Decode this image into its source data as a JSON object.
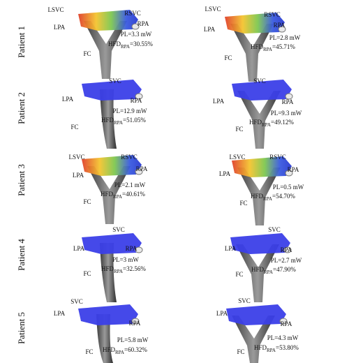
{
  "rows": [
    {
      "label": "Patient 1",
      "panels": [
        {
          "labels": [
            "LSVC",
            "RSVC",
            "LPA",
            "RPA",
            "FC"
          ],
          "pl": "PL=3.3 mW",
          "hfd": "HFD",
          "sub": "RPA",
          "val": "=30.55%"
        },
        {
          "labels": [
            "LSVC",
            "RSVC",
            "LPA",
            "RPA",
            "FC"
          ],
          "pl": "PL=2.8 mW",
          "hfd": "HFD",
          "sub": "RPA",
          "val": "=45.71%"
        }
      ]
    },
    {
      "label": "Patient 2",
      "panels": [
        {
          "labels": [
            "SVC",
            "LPA",
            "RPA",
            "FC"
          ],
          "pl": "PL=12.9 mW",
          "hfd": "HFD",
          "sub": "RPA",
          "val": "=51.05%"
        },
        {
          "labels": [
            "SVC",
            "LPA",
            "RPA",
            "FC"
          ],
          "pl": "PL=9.3 mW",
          "hfd": "HFD",
          "sub": "RPA",
          "val": "=49.12%"
        }
      ]
    },
    {
      "label": "Patient 3",
      "panels": [
        {
          "labels": [
            "LSVC",
            "RSVC",
            "LPA",
            "RPA",
            "FC"
          ],
          "pl": "PL=2.1 mW",
          "hfd": "HFD",
          "sub": "RPA",
          "val": "=40.61%"
        },
        {
          "labels": [
            "LSVC",
            "RSVC",
            "LPA",
            "RPA",
            "FC"
          ],
          "pl": "PL=0.5 mW",
          "hfd": "HFD",
          "sub": "RPA",
          "val": "=54.70%"
        }
      ]
    },
    {
      "label": "Patient 4",
      "panels": [
        {
          "labels": [
            "SVC",
            "LPA",
            "RPA",
            "FC"
          ],
          "pl": "PL=3 mW",
          "hfd": "HFD",
          "sub": "RPA",
          "val": "=32.56%"
        },
        {
          "labels": [
            "SVC",
            "LPA",
            "RPA",
            "FC"
          ],
          "pl": "PL=2.7 mW",
          "hfd": "HFD",
          "sub": "RPA",
          "val": "=47.90%"
        }
      ]
    },
    {
      "label": "Patient 5",
      "panels": [
        {
          "labels": [
            "SVC",
            "LPA",
            "RPA",
            "FC"
          ],
          "pl": "PL=5.8 mW",
          "hfd": "HFD",
          "sub": "RPA",
          "val": "=60.32%"
        },
        {
          "labels": [
            "SVC",
            "LPA",
            "RPA",
            "FC"
          ],
          "pl": "PL=4.3 mW",
          "hfd": "HFD",
          "sub": "RPA",
          "val": "=53.80%"
        }
      ]
    }
  ]
}
